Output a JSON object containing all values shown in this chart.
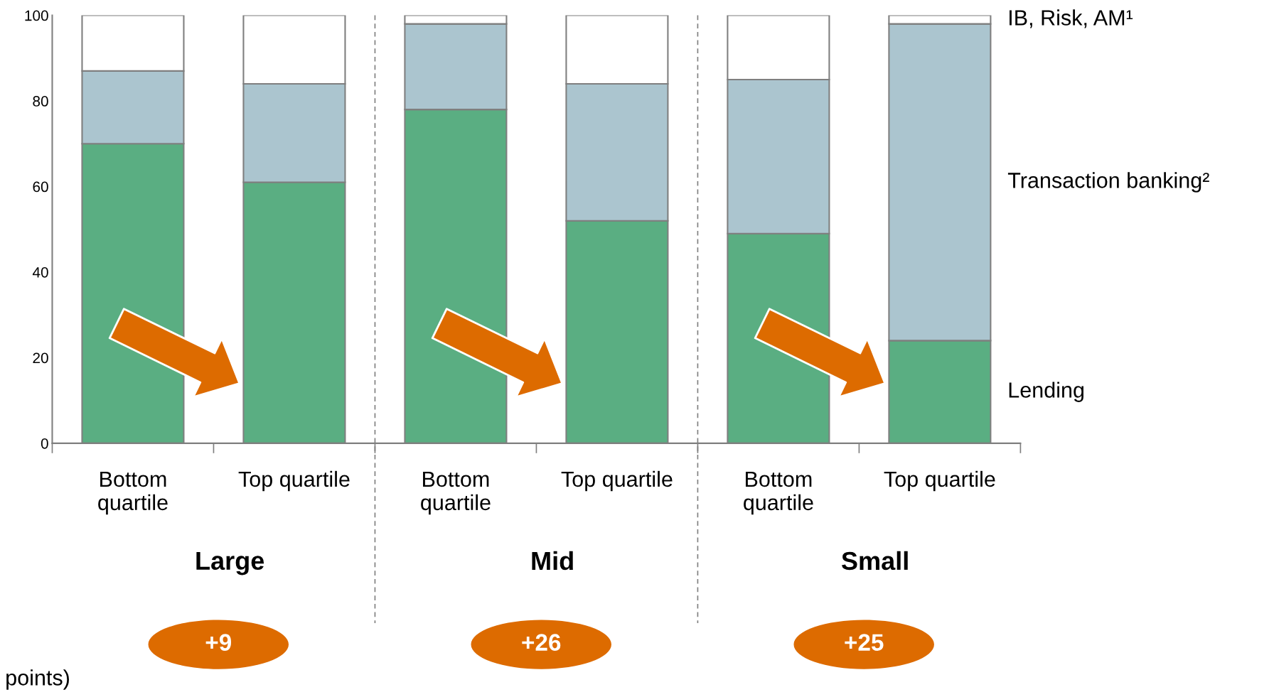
{
  "chart_data": {
    "type": "bar",
    "stacked": true,
    "categories": [
      "Bottom\nquartile",
      "Top quartile",
      "Bottom\nquartile",
      "Top quartile",
      "Bottom\nquartile",
      "Top quartile"
    ],
    "series": [
      {
        "name": "Lending",
        "color": "#5aae82",
        "values": [
          70,
          61,
          78,
          52,
          49,
          24
        ]
      },
      {
        "name": "Transaction banking²",
        "color": "#abc5cf",
        "values": [
          17,
          23,
          20,
          32,
          36,
          74
        ]
      },
      {
        "name": "IB, Risk, AM¹",
        "color": "#ffffff",
        "values": [
          13,
          16,
          2,
          16,
          15,
          2
        ]
      }
    ],
    "ylim": [
      0,
      100
    ],
    "yticks": [
      0,
      20,
      40,
      60,
      80,
      100
    ],
    "grid": false,
    "legend": false,
    "annotations": [
      "Large",
      "Mid",
      "Small",
      "+9",
      "+26",
      "+25",
      "points)"
    ]
  }
}
